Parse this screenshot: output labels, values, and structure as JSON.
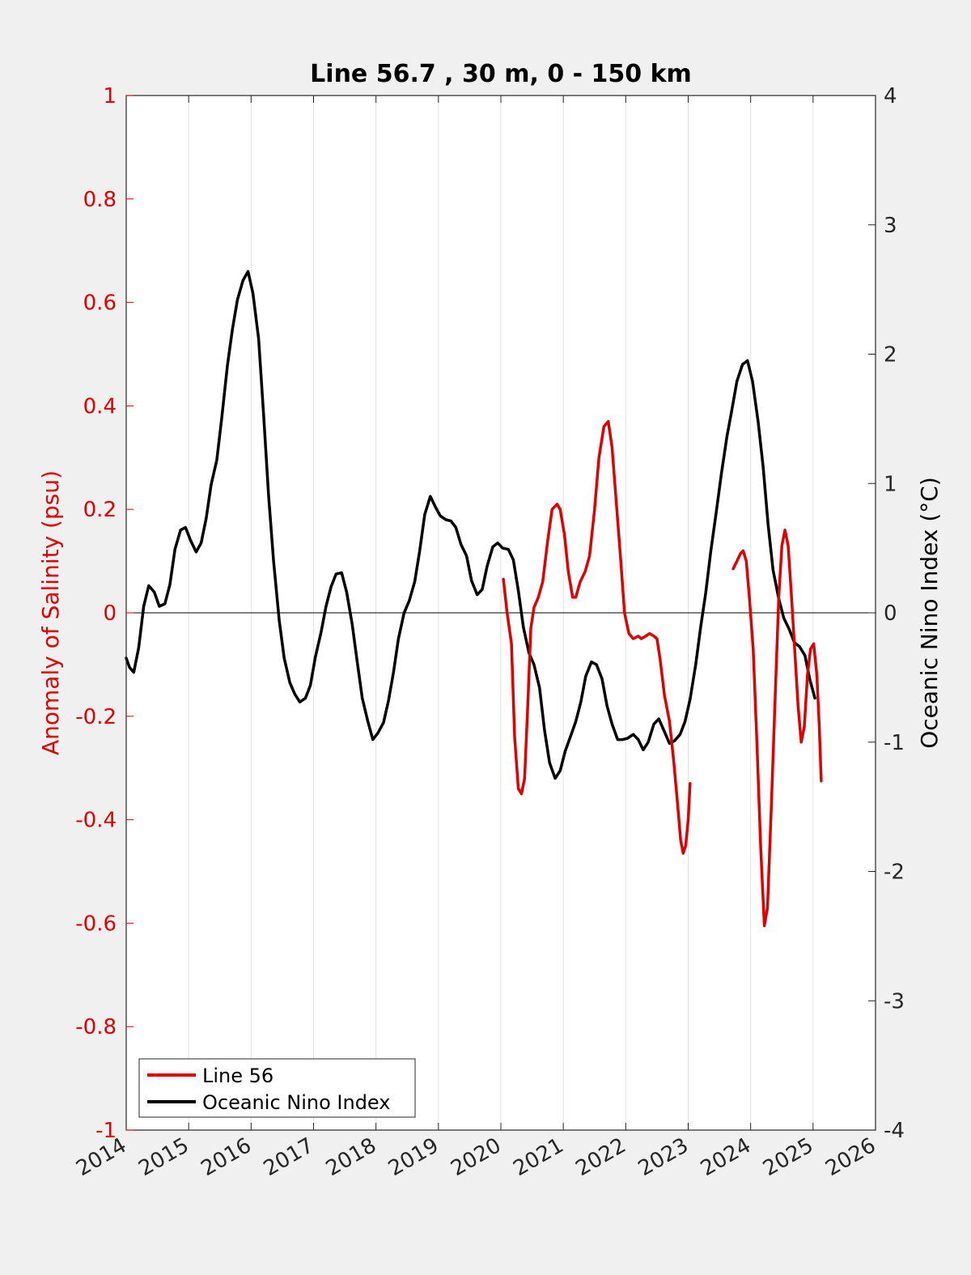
{
  "chart_data": {
    "type": "line",
    "title": "Line 56.7 , 30 m, 0 - 150 km",
    "xlabel": "",
    "ylabel_left": "Anomaly of Salinity (psu)",
    "ylabel_right": "Oceanic Nino Index (°C)",
    "xlim": [
      2014,
      2026
    ],
    "ylim_left": [
      -1,
      1
    ],
    "ylim_right": [
      -4,
      4
    ],
    "x_ticks": [
      "2014",
      "2015",
      "2016",
      "2017",
      "2018",
      "2019",
      "2020",
      "2021",
      "2022",
      "2023",
      "2024",
      "2025",
      "2026"
    ],
    "y_ticks_left": [
      "1",
      "0.8",
      "0.6",
      "0.4",
      "0.2",
      "0",
      "-0.2",
      "-0.4",
      "-0.6",
      "-0.8",
      "-1"
    ],
    "y_ticks_right": [
      "4",
      "3",
      "2",
      "1",
      "0",
      "-1",
      "-2",
      "-3",
      "-4"
    ],
    "grid": "vertical",
    "legend_position": "bottom-left",
    "colors": {
      "left_axis": "#e00000",
      "right_axis": "#000000",
      "background": "#f0f0f0",
      "plot": "#ffffff",
      "grid": "#e2e2e2"
    },
    "series": [
      {
        "name": "Line 56",
        "axis": "left",
        "color": "#e00000",
        "segments": [
          [
            [
              2020.04,
              0.065
            ],
            [
              2020.1,
              0.0
            ],
            [
              2020.17,
              -0.06
            ],
            [
              2020.22,
              -0.24
            ],
            [
              2020.28,
              -0.34
            ],
            [
              2020.33,
              -0.35
            ],
            [
              2020.38,
              -0.32
            ],
            [
              2020.43,
              -0.18
            ],
            [
              2020.48,
              -0.03
            ],
            [
              2020.53,
              0.01
            ],
            [
              2020.6,
              0.03
            ],
            [
              2020.67,
              0.06
            ],
            [
              2020.75,
              0.14
            ],
            [
              2020.82,
              0.2
            ],
            [
              2020.9,
              0.21
            ],
            [
              2020.95,
              0.2
            ],
            [
              2021.02,
              0.15
            ],
            [
              2021.08,
              0.08
            ],
            [
              2021.15,
              0.03
            ],
            [
              2021.2,
              0.03
            ],
            [
              2021.27,
              0.06
            ],
            [
              2021.35,
              0.08
            ],
            [
              2021.42,
              0.11
            ],
            [
              2021.5,
              0.2
            ],
            [
              2021.57,
              0.3
            ],
            [
              2021.65,
              0.36
            ],
            [
              2021.72,
              0.37
            ],
            [
              2021.78,
              0.32
            ],
            [
              2021.85,
              0.21
            ],
            [
              2021.92,
              0.1
            ],
            [
              2021.98,
              0.0
            ],
            [
              2022.05,
              -0.04
            ],
            [
              2022.12,
              -0.05
            ],
            [
              2022.2,
              -0.045
            ],
            [
              2022.25,
              -0.05
            ],
            [
              2022.32,
              -0.045
            ],
            [
              2022.38,
              -0.04
            ],
            [
              2022.45,
              -0.045
            ],
            [
              2022.5,
              -0.05
            ],
            [
              2022.55,
              -0.09
            ],
            [
              2022.62,
              -0.16
            ],
            [
              2022.7,
              -0.21
            ],
            [
              2022.77,
              -0.29
            ],
            [
              2022.83,
              -0.37
            ],
            [
              2022.88,
              -0.44
            ],
            [
              2022.92,
              -0.465
            ],
            [
              2022.96,
              -0.45
            ],
            [
              2023.0,
              -0.4
            ],
            [
              2023.03,
              -0.33
            ]
          ],
          [
            [
              2023.72,
              0.085
            ],
            [
              2023.78,
              0.1
            ],
            [
              2023.84,
              0.115
            ],
            [
              2023.88,
              0.12
            ],
            [
              2023.93,
              0.1
            ],
            [
              2023.98,
              0.03
            ],
            [
              2024.04,
              -0.07
            ],
            [
              2024.1,
              -0.25
            ],
            [
              2024.16,
              -0.45
            ],
            [
              2024.22,
              -0.605
            ],
            [
              2024.27,
              -0.57
            ],
            [
              2024.33,
              -0.38
            ],
            [
              2024.4,
              -0.14
            ],
            [
              2024.45,
              0.03
            ],
            [
              2024.5,
              0.13
            ],
            [
              2024.55,
              0.16
            ],
            [
              2024.6,
              0.13
            ],
            [
              2024.65,
              0.04
            ],
            [
              2024.7,
              -0.06
            ],
            [
              2024.76,
              -0.18
            ],
            [
              2024.81,
              -0.25
            ],
            [
              2024.86,
              -0.22
            ],
            [
              2024.91,
              -0.12
            ],
            [
              2024.96,
              -0.07
            ],
            [
              2025.01,
              -0.06
            ],
            [
              2025.06,
              -0.12
            ],
            [
              2025.1,
              -0.22
            ],
            [
              2025.13,
              -0.325
            ]
          ]
        ]
      },
      {
        "name": "Oceanic Nino Index",
        "axis": "right",
        "color": "#000000",
        "segments": [
          [
            [
              2014.0,
              -0.35
            ],
            [
              2014.05,
              -0.42
            ],
            [
              2014.12,
              -0.46
            ],
            [
              2014.2,
              -0.27
            ],
            [
              2014.28,
              0.05
            ],
            [
              2014.36,
              0.21
            ],
            [
              2014.45,
              0.16
            ],
            [
              2014.53,
              0.05
            ],
            [
              2014.62,
              0.07
            ],
            [
              2014.7,
              0.22
            ],
            [
              2014.78,
              0.49
            ],
            [
              2014.87,
              0.64
            ],
            [
              2014.95,
              0.66
            ],
            [
              2015.03,
              0.56
            ],
            [
              2015.12,
              0.47
            ],
            [
              2015.2,
              0.54
            ],
            [
              2015.28,
              0.73
            ],
            [
              2015.36,
              0.99
            ],
            [
              2015.45,
              1.18
            ],
            [
              2015.53,
              1.51
            ],
            [
              2015.62,
              1.91
            ],
            [
              2015.7,
              2.19
            ],
            [
              2015.78,
              2.42
            ],
            [
              2015.87,
              2.57
            ],
            [
              2015.95,
              2.64
            ],
            [
              2016.03,
              2.47
            ],
            [
              2016.12,
              2.12
            ],
            [
              2016.2,
              1.53
            ],
            [
              2016.28,
              0.91
            ],
            [
              2016.36,
              0.4
            ],
            [
              2016.45,
              -0.06
            ],
            [
              2016.53,
              -0.35
            ],
            [
              2016.62,
              -0.54
            ],
            [
              2016.7,
              -0.63
            ],
            [
              2016.78,
              -0.69
            ],
            [
              2016.87,
              -0.66
            ],
            [
              2016.95,
              -0.56
            ],
            [
              2017.03,
              -0.34
            ],
            [
              2017.12,
              -0.15
            ],
            [
              2017.2,
              0.05
            ],
            [
              2017.28,
              0.2
            ],
            [
              2017.36,
              0.3
            ],
            [
              2017.45,
              0.31
            ],
            [
              2017.53,
              0.16
            ],
            [
              2017.62,
              -0.09
            ],
            [
              2017.7,
              -0.38
            ],
            [
              2017.78,
              -0.66
            ],
            [
              2017.87,
              -0.84
            ],
            [
              2017.95,
              -0.98
            ],
            [
              2018.03,
              -0.93
            ],
            [
              2018.12,
              -0.85
            ],
            [
              2018.2,
              -0.68
            ],
            [
              2018.28,
              -0.46
            ],
            [
              2018.36,
              -0.2
            ],
            [
              2018.45,
              0.0
            ],
            [
              2018.53,
              0.09
            ],
            [
              2018.62,
              0.24
            ],
            [
              2018.7,
              0.48
            ],
            [
              2018.78,
              0.76
            ],
            [
              2018.87,
              0.9
            ],
            [
              2018.95,
              0.82
            ],
            [
              2019.03,
              0.75
            ],
            [
              2019.12,
              0.72
            ],
            [
              2019.2,
              0.71
            ],
            [
              2019.28,
              0.66
            ],
            [
              2019.36,
              0.53
            ],
            [
              2019.45,
              0.44
            ],
            [
              2019.53,
              0.25
            ],
            [
              2019.62,
              0.14
            ],
            [
              2019.7,
              0.18
            ],
            [
              2019.78,
              0.36
            ],
            [
              2019.87,
              0.51
            ],
            [
              2019.95,
              0.54
            ],
            [
              2020.03,
              0.5
            ],
            [
              2020.12,
              0.49
            ],
            [
              2020.2,
              0.41
            ],
            [
              2020.28,
              0.17
            ],
            [
              2020.36,
              -0.11
            ],
            [
              2020.45,
              -0.31
            ],
            [
              2020.53,
              -0.4
            ],
            [
              2020.62,
              -0.58
            ],
            [
              2020.7,
              -0.91
            ],
            [
              2020.78,
              -1.16
            ],
            [
              2020.87,
              -1.28
            ],
            [
              2020.95,
              -1.22
            ],
            [
              2021.03,
              -1.07
            ],
            [
              2021.12,
              -0.95
            ],
            [
              2021.2,
              -0.84
            ],
            [
              2021.28,
              -0.69
            ],
            [
              2021.36,
              -0.49
            ],
            [
              2021.45,
              -0.38
            ],
            [
              2021.53,
              -0.4
            ],
            [
              2021.62,
              -0.51
            ],
            [
              2021.7,
              -0.72
            ],
            [
              2021.78,
              -0.86
            ],
            [
              2021.87,
              -0.98
            ],
            [
              2021.95,
              -0.98
            ],
            [
              2022.03,
              -0.97
            ],
            [
              2022.12,
              -0.94
            ],
            [
              2022.2,
              -0.98
            ],
            [
              2022.28,
              -1.06
            ],
            [
              2022.36,
              -1.0
            ],
            [
              2022.45,
              -0.86
            ],
            [
              2022.53,
              -0.82
            ],
            [
              2022.62,
              -0.92
            ],
            [
              2022.7,
              -1.01
            ],
            [
              2022.78,
              -0.99
            ],
            [
              2022.87,
              -0.94
            ],
            [
              2022.95,
              -0.84
            ],
            [
              2023.03,
              -0.67
            ],
            [
              2023.12,
              -0.4
            ],
            [
              2023.2,
              -0.11
            ],
            [
              2023.28,
              0.15
            ],
            [
              2023.36,
              0.47
            ],
            [
              2023.45,
              0.78
            ],
            [
              2023.53,
              1.07
            ],
            [
              2023.62,
              1.36
            ],
            [
              2023.7,
              1.57
            ],
            [
              2023.78,
              1.79
            ],
            [
              2023.87,
              1.92
            ],
            [
              2023.95,
              1.95
            ],
            [
              2024.03,
              1.79
            ],
            [
              2024.12,
              1.48
            ],
            [
              2024.2,
              1.13
            ],
            [
              2024.28,
              0.68
            ],
            [
              2024.36,
              0.33
            ],
            [
              2024.45,
              0.11
            ],
            [
              2024.53,
              -0.04
            ],
            [
              2024.62,
              -0.13
            ],
            [
              2024.7,
              -0.23
            ],
            [
              2024.78,
              -0.26
            ],
            [
              2024.87,
              -0.33
            ],
            [
              2024.95,
              -0.52
            ],
            [
              2025.03,
              -0.66
            ]
          ]
        ]
      }
    ],
    "legend": [
      "Line 56",
      "Oceanic Nino Index"
    ]
  }
}
